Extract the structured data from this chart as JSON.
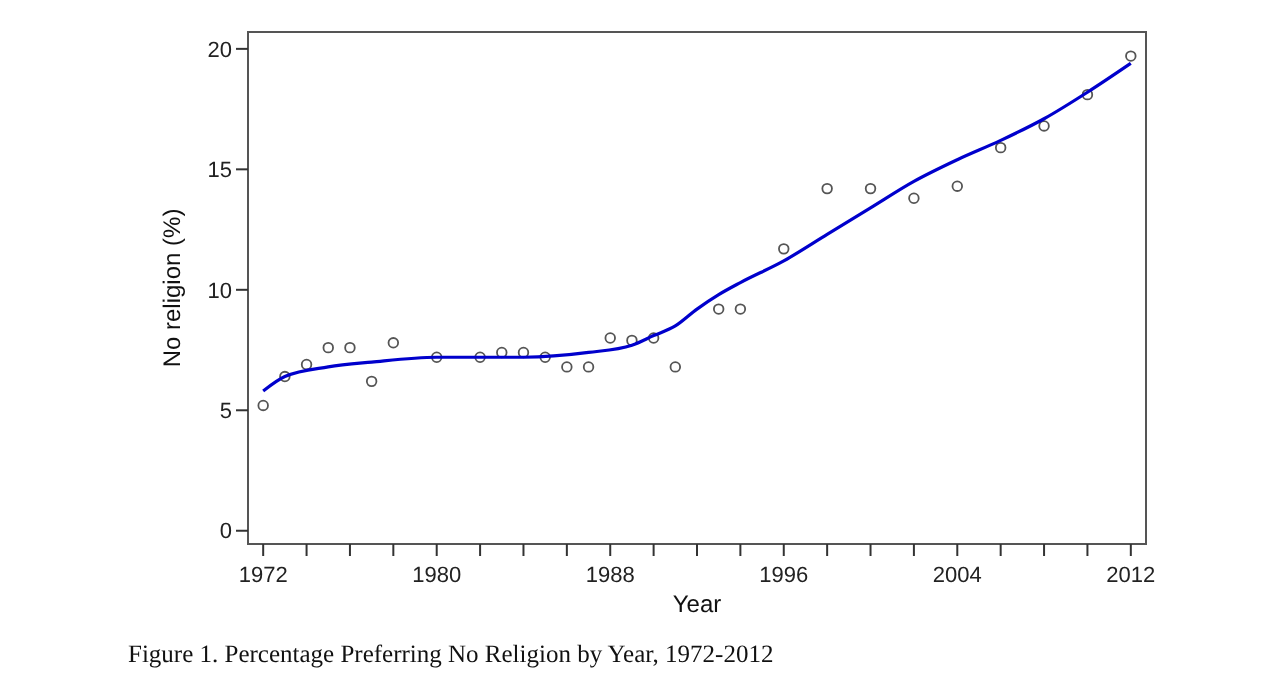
{
  "chart_data": {
    "type": "scatter",
    "xlabel": "Year",
    "ylabel": "No religion (%)",
    "annotations": [
      "Figure 1. Percentage Preferring No Religion by Year, 1972-2012"
    ],
    "xlim": [
      1971.3,
      2012.7
    ],
    "ylim": [
      -0.55,
      20.7
    ],
    "xticks": [
      1972,
      {
        "value": 1974,
        "label": null
      },
      {
        "value": 1976,
        "label": null
      },
      {
        "value": 1978,
        "label": null
      },
      1980,
      {
        "value": 1982,
        "label": null
      },
      {
        "value": 1984,
        "label": null
      },
      {
        "value": 1986,
        "label": null
      },
      1988,
      {
        "value": 1990,
        "label": null
      },
      {
        "value": 1992,
        "label": null
      },
      {
        "value": 1994,
        "label": null
      },
      1996,
      {
        "value": 1998,
        "label": null
      },
      {
        "value": 2000,
        "label": null
      },
      {
        "value": 2002,
        "label": null
      },
      2004,
      {
        "value": 2006,
        "label": null
      },
      {
        "value": 2008,
        "label": null
      },
      {
        "value": 2010,
        "label": null
      },
      2012
    ],
    "yticks": [
      0,
      5,
      10,
      15,
      20
    ],
    "grid": false,
    "series": [
      {
        "color": "#555555",
        "marker": "circle",
        "x": [
          1972,
          1973,
          1974,
          1975,
          1976,
          1977,
          1978,
          1980,
          1982,
          1983,
          1984,
          1985,
          1986,
          1987,
          1988,
          1989,
          1990,
          1991,
          1993,
          1994,
          1996,
          1998,
          2000,
          2002,
          2004,
          2006,
          2008,
          2010,
          2012
        ],
        "values": [
          5.2,
          6.4,
          6.9,
          7.6,
          7.6,
          6.2,
          7.8,
          7.2,
          7.2,
          7.4,
          7.4,
          7.2,
          6.8,
          6.8,
          8.0,
          7.9,
          8.0,
          6.8,
          9.2,
          9.2,
          11.7,
          14.2,
          14.2,
          13.8,
          14.3,
          15.9,
          16.8,
          18.1,
          19.7
        ]
      },
      {
        "type": "line",
        "color": "#0000cc",
        "marker": "none",
        "line_style": "solid",
        "x": [
          1972,
          1973,
          1975,
          1977,
          1980,
          1984,
          1987,
          1989,
          1990,
          1991,
          1992,
          1993,
          1994,
          1996,
          1998,
          2000,
          2002,
          2004,
          2006,
          2008,
          2010,
          2012
        ],
        "values": [
          5.8,
          6.4,
          6.8,
          7.0,
          7.2,
          7.2,
          7.4,
          7.7,
          8.1,
          8.5,
          9.2,
          9.8,
          10.3,
          11.2,
          12.3,
          13.4,
          14.5,
          15.4,
          16.2,
          17.1,
          18.2,
          19.4
        ]
      }
    ]
  }
}
